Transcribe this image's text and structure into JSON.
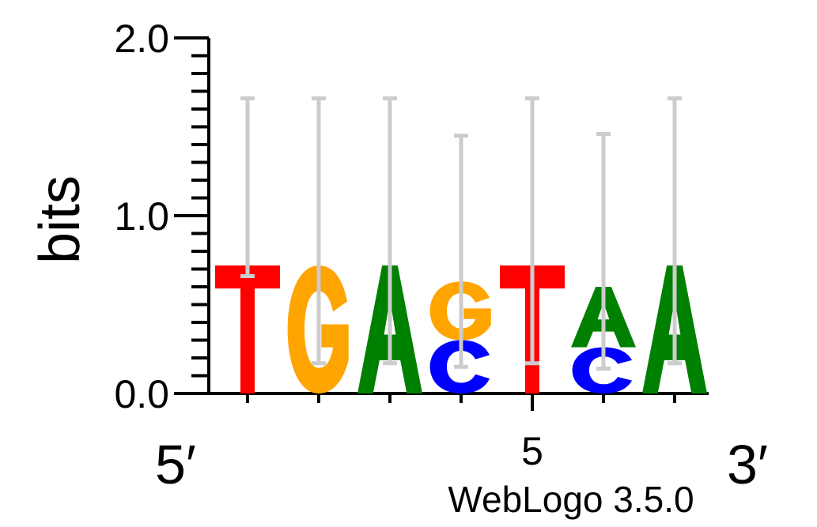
{
  "chart_data": {
    "type": "sequence-logo",
    "ylabel": "bits",
    "ylim": [
      0,
      2.0
    ],
    "y_ticks": [
      "0.0",
      "1.0",
      "2.0"
    ],
    "x_end_labels": {
      "left": "5′",
      "right": "3′"
    },
    "x_numbered_positions": [
      {
        "position": 5,
        "label": "5"
      }
    ],
    "footer": "WebLogo 3.5.0",
    "colors": {
      "A": "#008000",
      "C": "#0000ff",
      "G": "#ffa500",
      "T": "#ff0000",
      "errorbar": "#cccccc"
    },
    "positions": [
      {
        "position": 1,
        "letters": [
          {
            "base": "T",
            "bits": 0.72
          }
        ],
        "error": [
          0.66,
          1.66
        ]
      },
      {
        "position": 2,
        "letters": [
          {
            "base": "G",
            "bits": 0.72
          }
        ],
        "error": [
          0.17,
          1.66
        ]
      },
      {
        "position": 3,
        "letters": [
          {
            "base": "A",
            "bits": 0.72
          }
        ],
        "error": [
          0.17,
          1.66
        ]
      },
      {
        "position": 4,
        "letters": [
          {
            "base": "C",
            "bits": 0.3
          },
          {
            "base": "G",
            "bits": 0.33
          }
        ],
        "error": [
          0.15,
          1.45
        ]
      },
      {
        "position": 5,
        "letters": [
          {
            "base": "T",
            "bits": 0.72
          }
        ],
        "error": [
          0.17,
          1.66
        ]
      },
      {
        "position": 6,
        "letters": [
          {
            "base": "C",
            "bits": 0.26
          },
          {
            "base": "A",
            "bits": 0.34
          }
        ],
        "error": [
          0.14,
          1.46
        ]
      },
      {
        "position": 7,
        "letters": [
          {
            "base": "A",
            "bits": 0.72
          }
        ],
        "error": [
          0.17,
          1.66
        ]
      }
    ]
  }
}
